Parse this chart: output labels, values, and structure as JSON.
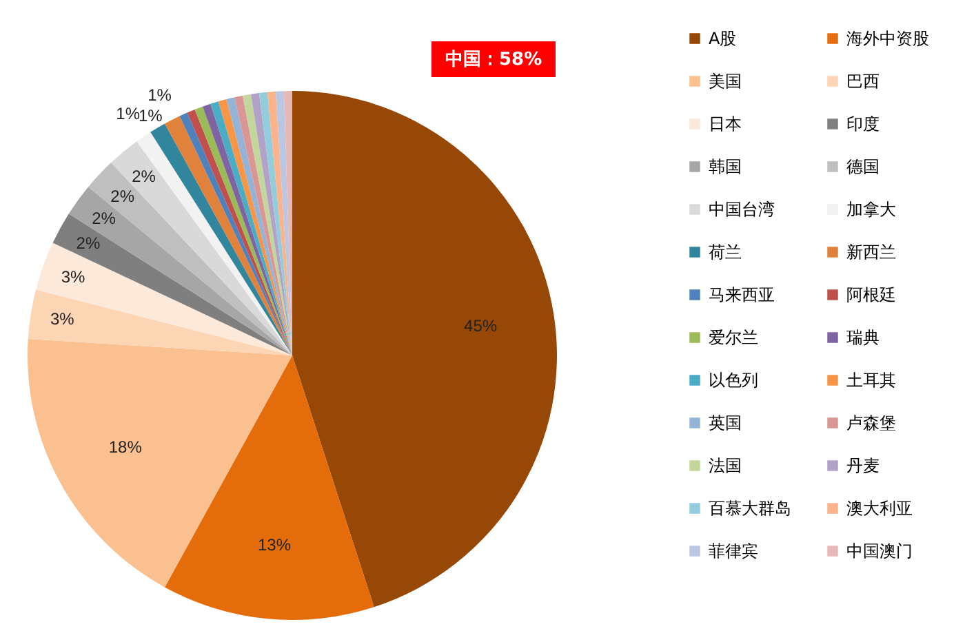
{
  "chart_data": {
    "type": "pie",
    "categories": [
      "A股",
      "海外中资股",
      "美国",
      "巴西",
      "日本",
      "印度",
      "韩国",
      "德国",
      "中国台湾",
      "加拿大",
      "荷兰",
      "新西兰",
      "马来西亚",
      "阿根廷",
      "爱尔兰",
      "瑞典",
      "以色列",
      "土耳其",
      "英国",
      "卢森堡",
      "法国",
      "丹麦",
      "百慕大群岛",
      "澳大利亚",
      "菲律宾",
      "中国澳门"
    ],
    "values": [
      45,
      13,
      18,
      3,
      3,
      2,
      2,
      2,
      2,
      1,
      1,
      1,
      0.5,
      0.5,
      0.5,
      0.5,
      0.5,
      0.5,
      0.5,
      0.5,
      0.5,
      0.5,
      0.5,
      0.5,
      0.5,
      0.5
    ],
    "value_labels": [
      "45%",
      "13%",
      "18%",
      "3%",
      "3%",
      "2%",
      "2%",
      "2%",
      "2%",
      "1%",
      "1%",
      "1%",
      null,
      null,
      null,
      null,
      null,
      null,
      null,
      null,
      null,
      null,
      null,
      null,
      null,
      null
    ],
    "colors": [
      "#974706",
      "#e46c0a",
      "#fac090",
      "#fcd5b5",
      "#fde9d9",
      "#7f7f7f",
      "#a6a6a6",
      "#bfbfbf",
      "#d9d9d9",
      "#f2f2f2",
      "#31859c",
      "#e0823b",
      "#4f81bd",
      "#c0504d",
      "#9bbb59",
      "#8064a2",
      "#4bacc6",
      "#f79646",
      "#95b3d7",
      "#d99694",
      "#c3d69b",
      "#b3a2c7",
      "#93cddd",
      "#fbb38c",
      "#b9c7e2",
      "#e6b9b8"
    ],
    "annotations": [
      "中国：58%"
    ],
    "legend": "right"
  }
}
